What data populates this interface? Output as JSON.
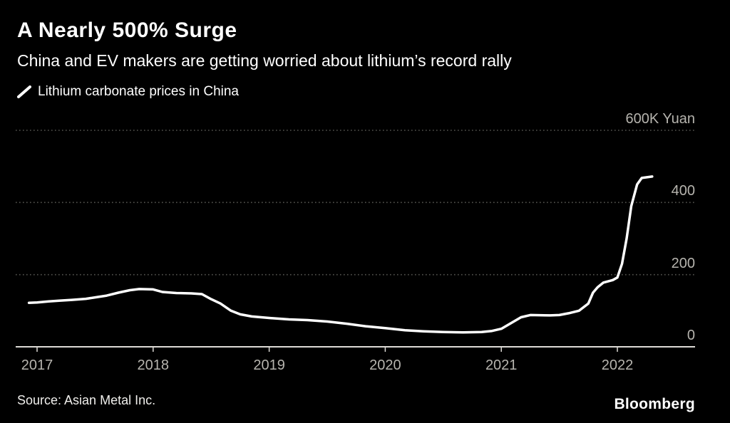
{
  "header": {
    "title": "A Nearly 500% Surge",
    "subtitle": "China and EV makers are getting worried about lithium’s record rally"
  },
  "legend": {
    "label": "Lithium carbonate prices in China",
    "marker": "diagonal-line-sample",
    "marker_color": "#ffffff"
  },
  "footer": {
    "source": "Source: Asian Metal Inc.",
    "brand": "Bloomberg"
  },
  "chart_data": {
    "type": "line",
    "title": "A Nearly 500% Surge",
    "subtitle": "China and EV makers are getting worried about lithium’s record rally",
    "unit": "K Yuan",
    "grid": "dotted-horizontal",
    "legend_position": "top-left",
    "background": "#000000",
    "line_color": "#ffffff",
    "axis_label_color": "#b6b4ae",
    "xlim": [
      2016.92,
      2022.67
    ],
    "ylim": [
      0,
      600
    ],
    "x_ticks": [
      2017,
      2018,
      2019,
      2020,
      2021,
      2022
    ],
    "x_tick_labels": [
      "2017",
      "2018",
      "2019",
      "2020",
      "2021",
      "2022"
    ],
    "y_ticks": [
      0,
      200,
      400,
      600
    ],
    "y_tick_labels": [
      "0",
      "200",
      "400",
      "600K Yuan"
    ],
    "series": [
      {
        "name": "Lithium carbonate prices in China",
        "x": [
          2016.93,
          2017.0,
          2017.1,
          2017.2,
          2017.3,
          2017.42,
          2017.5,
          2017.6,
          2017.7,
          2017.8,
          2017.88,
          2018.0,
          2018.08,
          2018.2,
          2018.33,
          2018.42,
          2018.5,
          2018.58,
          2018.67,
          2018.75,
          2018.85,
          2019.0,
          2019.17,
          2019.33,
          2019.5,
          2019.67,
          2019.83,
          2020.0,
          2020.17,
          2020.33,
          2020.5,
          2020.67,
          2020.83,
          2020.92,
          2021.0,
          2021.08,
          2021.17,
          2021.25,
          2021.42,
          2021.5,
          2021.58,
          2021.67,
          2021.75,
          2021.79,
          2021.83,
          2021.88,
          2021.96,
          2022.0,
          2022.04,
          2022.08,
          2022.12,
          2022.17,
          2022.21,
          2022.3
        ],
        "values": [
          122,
          123,
          126,
          128,
          130,
          133,
          137,
          142,
          150,
          157,
          160,
          159,
          152,
          149,
          148,
          146,
          132,
          120,
          100,
          90,
          84,
          80,
          76,
          74,
          70,
          64,
          57,
          52,
          46,
          43,
          41,
          40,
          41,
          44,
          50,
          65,
          82,
          88,
          87,
          88,
          93,
          100,
          120,
          150,
          165,
          178,
          185,
          192,
          230,
          300,
          390,
          450,
          468,
          472
        ]
      }
    ]
  }
}
